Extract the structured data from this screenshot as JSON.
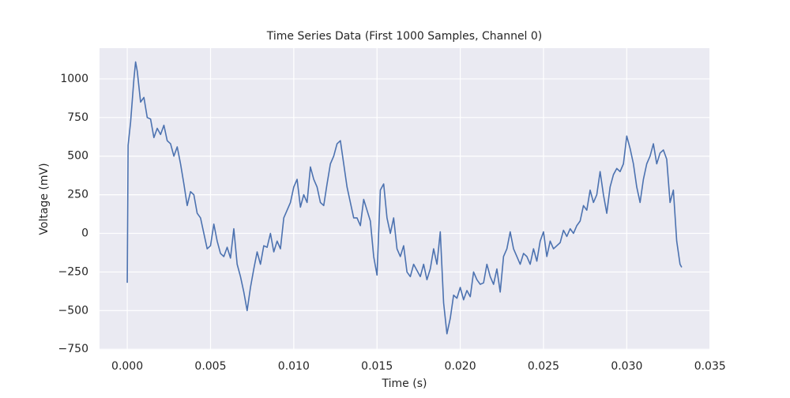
{
  "chart_data": {
    "type": "line",
    "title": "Time Series Data (First 1000 Samples, Channel 0)",
    "x_label": "Time (s)",
    "y_label": "Voltage (mV)",
    "x": [
      0,
      5e-05,
      0.0002,
      0.0004,
      0.0005,
      0.0006,
      0.0008,
      0.001,
      0.0012,
      0.0014,
      0.0016,
      0.0018,
      0.002,
      0.0022,
      0.0024,
      0.0026,
      0.0028,
      0.003,
      0.0032,
      0.0034,
      0.0036,
      0.0038,
      0.004,
      0.0042,
      0.0044,
      0.0046,
      0.0048,
      0.005,
      0.0052,
      0.0054,
      0.0056,
      0.0058,
      0.006,
      0.0062,
      0.0064,
      0.0066,
      0.0068,
      0.007,
      0.0072,
      0.0074,
      0.0076,
      0.0078,
      0.008,
      0.0082,
      0.0084,
      0.0086,
      0.0088,
      0.009,
      0.0092,
      0.0094,
      0.0096,
      0.0098,
      0.01,
      0.0102,
      0.0104,
      0.0106,
      0.0108,
      0.011,
      0.0112,
      0.0114,
      0.0116,
      0.0118,
      0.012,
      0.0122,
      0.0124,
      0.0126,
      0.0128,
      0.013,
      0.0132,
      0.0134,
      0.0136,
      0.0138,
      0.014,
      0.0142,
      0.0144,
      0.0146,
      0.0148,
      0.015,
      0.0152,
      0.0154,
      0.0156,
      0.0158,
      0.016,
      0.0162,
      0.0164,
      0.0166,
      0.0168,
      0.017,
      0.0172,
      0.0174,
      0.0176,
      0.0178,
      0.018,
      0.0182,
      0.0184,
      0.0186,
      0.0188,
      0.019,
      0.0192,
      0.0194,
      0.0196,
      0.0198,
      0.02,
      0.0202,
      0.0204,
      0.0206,
      0.0208,
      0.021,
      0.0212,
      0.0214,
      0.0216,
      0.0218,
      0.022,
      0.0222,
      0.0224,
      0.0226,
      0.0228,
      0.023,
      0.0232,
      0.0234,
      0.0236,
      0.0238,
      0.024,
      0.0242,
      0.0244,
      0.0246,
      0.0248,
      0.025,
      0.0252,
      0.0254,
      0.0256,
      0.0258,
      0.026,
      0.0262,
      0.0264,
      0.0266,
      0.0268,
      0.027,
      0.0272,
      0.0274,
      0.0276,
      0.0278,
      0.028,
      0.0282,
      0.0284,
      0.0286,
      0.0288,
      0.029,
      0.0292,
      0.0294,
      0.0296,
      0.0298,
      0.03,
      0.0302,
      0.0304,
      0.0306,
      0.0308,
      0.031,
      0.0312,
      0.0314,
      0.0316,
      0.0318,
      0.032,
      0.0322,
      0.0324,
      0.0326,
      0.0328,
      0.033,
      0.0332,
      0.0333
    ],
    "series": [
      {
        "name": "Channel 0",
        "color": "#4c72b0",
        "values": [
          -320,
          570,
          720,
          1000,
          1110,
          1050,
          850,
          880,
          750,
          740,
          620,
          680,
          640,
          700,
          600,
          580,
          500,
          560,
          450,
          320,
          180,
          270,
          250,
          130,
          100,
          0,
          -100,
          -80,
          60,
          -50,
          -130,
          -150,
          -90,
          -160,
          30,
          -200,
          -280,
          -380,
          -500,
          -350,
          -230,
          -120,
          -200,
          -80,
          -90,
          0,
          -120,
          -50,
          -100,
          100,
          150,
          200,
          300,
          350,
          170,
          250,
          200,
          430,
          350,
          300,
          200,
          180,
          320,
          450,
          500,
          580,
          600,
          450,
          300,
          200,
          100,
          100,
          50,
          220,
          150,
          80,
          -150,
          -270,
          280,
          320,
          100,
          0,
          100,
          -100,
          -150,
          -80,
          -250,
          -280,
          -200,
          -240,
          -280,
          -200,
          -300,
          -230,
          -100,
          -200,
          10,
          -450,
          -650,
          -550,
          -400,
          -420,
          -350,
          -430,
          -370,
          -410,
          -250,
          -300,
          -330,
          -320,
          -200,
          -280,
          -330,
          -230,
          -380,
          -150,
          -100,
          10,
          -100,
          -150,
          -200,
          -130,
          -150,
          -200,
          -100,
          -180,
          -50,
          10,
          -150,
          -50,
          -100,
          -80,
          -60,
          20,
          -20,
          30,
          0,
          50,
          80,
          180,
          150,
          280,
          200,
          250,
          400,
          250,
          130,
          300,
          380,
          420,
          400,
          450,
          630,
          550,
          450,
          300,
          200,
          350,
          450,
          500,
          580,
          450,
          520,
          540,
          480,
          200,
          280,
          -50,
          -200,
          -220
        ]
      }
    ],
    "xlim": [
      -0.001665,
      0.034965
    ],
    "ylim": [
      -754,
      1199
    ],
    "xticks": [
      {
        "value": 0,
        "label": "0.000"
      },
      {
        "value": 0.005,
        "label": "0.005"
      },
      {
        "value": 0.01,
        "label": "0.010"
      },
      {
        "value": 0.015,
        "label": "0.015"
      },
      {
        "value": 0.02,
        "label": "0.020"
      },
      {
        "value": 0.025,
        "label": "0.025"
      },
      {
        "value": 0.03,
        "label": "0.030"
      },
      {
        "value": 0.035,
        "label": "0.035"
      }
    ],
    "yticks": [
      {
        "value": -750,
        "label": "−750"
      },
      {
        "value": -500,
        "label": "−500"
      },
      {
        "value": -250,
        "label": "−250"
      },
      0,
      250,
      500,
      750,
      1000
    ],
    "grid": true
  }
}
